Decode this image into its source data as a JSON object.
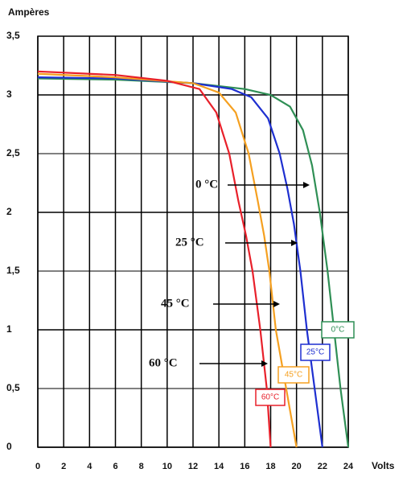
{
  "chart_data": {
    "type": "line",
    "y_label": "Ampères",
    "x_label": "Volts",
    "xlim": [
      0,
      24
    ],
    "xticks": [
      0,
      2,
      4,
      6,
      8,
      10,
      12,
      14,
      16,
      18,
      20,
      22,
      24
    ],
    "ylim": [
      0,
      3.5
    ],
    "yticks": [
      0,
      {
        "value": 0.5,
        "label": "0,5"
      },
      1,
      {
        "value": 1.5,
        "label": "1,5"
      },
      2,
      {
        "value": 2.5,
        "label": "2,5"
      },
      3,
      {
        "value": 3.5,
        "label": "3,5"
      }
    ],
    "grid": true,
    "series": [
      {
        "name": "0°C",
        "color": "#2f8f55",
        "x": [
          0,
          6,
          12,
          16,
          18,
          19.5,
          20.5,
          21.2,
          21.8,
          22.4,
          22.9,
          23.4,
          24
        ],
        "values": [
          3.14,
          3.13,
          3.1,
          3.05,
          3.0,
          2.9,
          2.7,
          2.4,
          2.0,
          1.5,
          1.0,
          0.5,
          0
        ]
      },
      {
        "name": "25°C",
        "color": "#1e2fd0",
        "x": [
          0,
          6,
          12,
          15,
          16.5,
          17.8,
          18.7,
          19.3,
          19.8,
          20.3,
          20.8,
          21.4,
          22
        ],
        "values": [
          3.15,
          3.14,
          3.1,
          3.05,
          2.98,
          2.8,
          2.5,
          2.2,
          1.9,
          1.5,
          1.0,
          0.5,
          0
        ]
      },
      {
        "name": "45°C",
        "color": "#f5a020",
        "x": [
          0,
          6,
          12,
          14,
          15.3,
          16.3,
          17.0,
          17.5,
          17.9,
          18.4,
          19.2,
          20
        ],
        "values": [
          3.18,
          3.15,
          3.1,
          3.02,
          2.85,
          2.5,
          2.1,
          1.8,
          1.5,
          1.0,
          0.5,
          0
        ]
      },
      {
        "name": "60°C",
        "color": "#e8202a",
        "x": [
          0,
          6,
          10,
          12.5,
          13.8,
          14.8,
          15.5,
          16.1,
          16.6,
          17.2,
          17.7,
          18
        ],
        "values": [
          3.2,
          3.17,
          3.12,
          3.05,
          2.85,
          2.5,
          2.1,
          1.8,
          1.5,
          1.0,
          0.5,
          0
        ]
      }
    ],
    "annotations": [
      "0 °C",
      "25 °C",
      "45 °C",
      "60 °C"
    ]
  }
}
